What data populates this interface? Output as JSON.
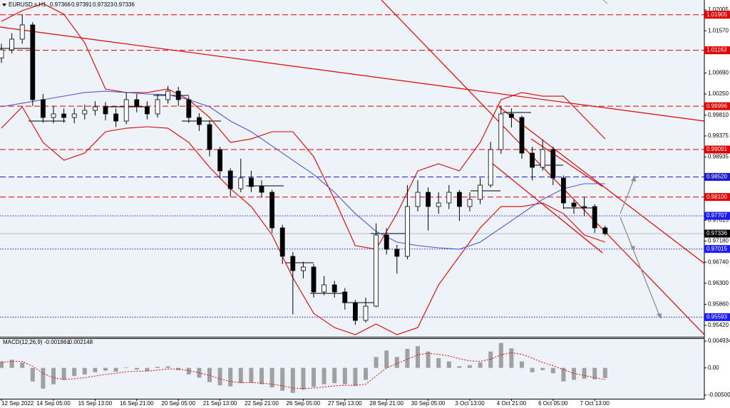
{
  "chart_data": {
    "type": "candlestick",
    "title": "EURUSD.s,H1",
    "quote": [
      0.97366,
      0.97391,
      0.97323,
      0.97336
    ],
    "categories": [
      "12 Sep 2022",
      null,
      null,
      null,
      null,
      "14 Sep 05:00",
      null,
      null,
      null,
      "15 Sep 13:00",
      null,
      null,
      null,
      "16 Sep 21:00",
      null,
      null,
      null,
      "20 Sep 05:00",
      null,
      null,
      null,
      "21 Sep 13:00",
      null,
      null,
      null,
      "22 Sep 21:00",
      null,
      null,
      null,
      "26 Sep 05:00",
      null,
      null,
      null,
      "27 Sep 13:00",
      null,
      null,
      null,
      "28 Sep 21:00",
      null,
      null,
      null,
      "30 Sep 05:00",
      null,
      null,
      null,
      "3 Oct 13:00",
      null,
      null,
      null,
      "4 Oct 21:00",
      null,
      null,
      null,
      "6 Oct 05:00",
      null,
      null,
      null,
      "7 Oct 13:00",
      null
    ],
    "open": [
      1.01,
      1.01173,
      1.01396,
      1.01693,
      1.00132,
      0.9976,
      0.99835,
      0.9976,
      0.99835,
      0.99909,
      0.99983,
      0.99835,
      0.99686,
      1.00132,
      0.99983,
      0.99835,
      1.00132,
      1.0031,
      1.00132,
      0.9976,
      0.99612,
      0.99091,
      0.98645,
      0.98274,
      0.98497,
      0.98318,
      0.98199,
      0.97456,
      0.96862,
      0.96564,
      0.96639,
      0.96118,
      0.96267,
      0.96118,
      0.95895,
      0.95524,
      0.95821,
      0.97308,
      0.9701,
      0.96862,
      0.97902,
      0.98199,
      0.97902,
      0.97976,
      0.98199,
      0.97902,
      0.98051,
      0.98348,
      0.99091,
      0.99835,
      0.9976,
      0.99017,
      0.9872,
      0.99091,
      0.98497,
      0.97976,
      0.97902,
      0.97902,
      0.97456
    ],
    "high": [
      1.013,
      1.0152,
      1.01905,
      1.0175,
      1.0025,
      1.0,
      0.9995,
      0.9995,
      1.0003,
      1.001,
      1.0008,
      0.9995,
      1.0029,
      1.0025,
      1.001,
      1.0025,
      1.0042,
      1.004,
      1.002,
      0.9985,
      0.997,
      0.9915,
      0.987,
      0.989,
      0.9865,
      0.9845,
      0.9825,
      0.9752,
      0.9695,
      0.9675,
      0.967,
      0.9645,
      0.9635,
      0.962,
      0.9595,
      0.96,
      0.9755,
      0.9745,
      0.971,
      0.9835,
      0.9845,
      0.983,
      0.982,
      0.9835,
      0.9825,
      0.982,
      0.985,
      0.9925,
      1.0,
      0.9995,
      0.998,
      0.9915,
      0.993,
      0.9915,
      0.9855,
      0.9805,
      0.981,
      0.9795,
      0.975
    ],
    "low": [
      1.009,
      1.011,
      1.013,
      1.0,
      0.9965,
      0.9964,
      0.9965,
      0.9964,
      0.9972,
      0.998,
      0.997,
      0.9956,
      0.9962,
      0.9987,
      0.9972,
      0.9976,
      1.0005,
      1.0,
      0.9965,
      0.9948,
      0.9895,
      0.985,
      0.981,
      0.982,
      0.982,
      0.981,
      0.9735,
      0.967,
      0.9565,
      0.964,
      0.96,
      0.9605,
      0.96,
      0.9575,
      0.9543,
      0.9548,
      0.958,
      0.969,
      0.965,
      0.968,
      0.978,
      0.974,
      0.9775,
      0.9785,
      0.976,
      0.978,
      0.9795,
      0.983,
      0.99,
      0.9955,
      0.989,
      0.9845,
      0.9865,
      0.9835,
      0.9785,
      0.9775,
      0.977,
      0.9735,
      0.973
    ],
    "close": [
      1.01173,
      1.01396,
      1.01693,
      1.00132,
      0.9976,
      0.99835,
      0.9976,
      0.99835,
      0.99909,
      0.99983,
      0.99835,
      0.99686,
      1.00132,
      0.99983,
      0.99835,
      1.00132,
      1.0031,
      1.00132,
      0.9976,
      0.99612,
      0.99091,
      0.98645,
      0.98274,
      0.98497,
      0.98318,
      0.98199,
      0.97456,
      0.96862,
      0.96564,
      0.96639,
      0.96118,
      0.96267,
      0.96118,
      0.95895,
      0.95524,
      0.95821,
      0.97308,
      0.9701,
      0.96862,
      0.97902,
      0.98199,
      0.97902,
      0.97976,
      0.98199,
      0.97902,
      0.98051,
      0.98348,
      0.99091,
      0.99835,
      0.9976,
      0.99017,
      0.9872,
      0.99091,
      0.98497,
      0.97976,
      0.97902,
      0.97902,
      0.97456,
      0.97336
    ],
    "ylim": [
      0.95182,
      1.02213
    ],
    "yticks": [
      1.02005,
      {
        "value": 1.0157,
        "label": "1.01570"
      },
      {
        "value": 1.0069,
        "label": "1.00690"
      },
      {
        "value": 1.0025,
        "label": "1.00250"
      },
      {
        "value": 0.9981,
        "label": "0.99810"
      },
      0.99375,
      0.98935,
      0.97615,
      {
        "value": 0.9718,
        "label": "0.97180"
      },
      {
        "value": 0.9674,
        "label": "0.96740"
      },
      {
        "value": 0.963,
        "label": "0.96300"
      },
      {
        "value": 0.9586,
        "label": "0.95860"
      },
      {
        "value": 0.9542,
        "label": "0.95420"
      }
    ],
    "grid": false,
    "up_color": "#ffffff",
    "down_color": "#000000",
    "overlays": [
      {
        "color": "#e00000",
        "x": [
          0,
          2,
          4,
          6,
          8,
          10,
          12,
          14,
          16,
          18,
          20,
          22,
          24,
          26,
          28,
          30,
          32,
          34,
          36,
          38,
          40,
          42,
          44,
          46,
          48,
          50,
          52,
          54,
          56,
          58
        ],
        "values": [
          1.01767,
          1.0199,
          1.02139,
          1.01916,
          1.01321,
          1.00355,
          1.00281,
          1.00281,
          1.00355,
          1.00132,
          0.9976,
          0.9924,
          0.99314,
          0.99463,
          0.99463,
          0.98943,
          0.98051,
          0.97085,
          0.9701,
          0.97753,
          0.98645,
          0.98794,
          0.98645,
          0.9924,
          1.00132,
          1.00281,
          1.00206,
          1.00206,
          0.9976,
          0.99314
        ]
      },
      {
        "color": "#e00000",
        "x": [
          0,
          2,
          4,
          6,
          8,
          10,
          12,
          14,
          16,
          18,
          20,
          22,
          24,
          26,
          28,
          30,
          32,
          34,
          36,
          38,
          40,
          42,
          44,
          46,
          48,
          50,
          52,
          54,
          56,
          58
        ],
        "values": [
          0.99537,
          0.99983,
          0.9924,
          0.98868,
          0.99017,
          0.99463,
          0.99537,
          0.99567,
          0.99537,
          0.9924,
          0.9872,
          0.98274,
          0.97902,
          0.97308,
          0.96416,
          0.95672,
          0.95375,
          0.95226,
          0.95449,
          0.95226,
          0.95375,
          0.96267,
          0.96862,
          0.97456,
          0.97902,
          0.97902,
          0.97976,
          0.97753,
          0.97308,
          0.97159
        ]
      },
      {
        "color": "#4a5ad8",
        "x": [
          0,
          2,
          4,
          6,
          8,
          10,
          12,
          14,
          16,
          18,
          20,
          22,
          24,
          26,
          28,
          30,
          32,
          34,
          36,
          38,
          40,
          42,
          44,
          46,
          48,
          50,
          52,
          54,
          56,
          58
        ],
        "values": [
          0.99983,
          1.00058,
          1.00132,
          1.00206,
          1.00281,
          1.0031,
          1.00281,
          1.00251,
          1.00236,
          1.00132,
          0.99983,
          0.99686,
          0.99463,
          0.99166,
          0.98868,
          0.98571,
          0.98199,
          0.97753,
          0.97382,
          0.97159,
          0.97085,
          0.9704,
          0.9701,
          0.97159,
          0.97456,
          0.97753,
          0.98051,
          0.98274,
          0.98378,
          0.98378
        ]
      }
    ],
    "levels": [
      {
        "value": 1.01905,
        "color": "#e00000",
        "style": "dash"
      },
      {
        "value": 1.01163,
        "color": "#e00000",
        "style": "dash"
      },
      {
        "value": 0.99996,
        "color": "#e00000",
        "style": "dash"
      },
      {
        "value": 0.99091,
        "color": "#e00000",
        "style": "dash"
      },
      {
        "value": 0.9852,
        "label": "0.98520",
        "color": "#1a1acc",
        "style": "dash"
      },
      {
        "value": 0.981,
        "label": "0.98100",
        "color": "#e00000",
        "style": "dash"
      },
      {
        "value": 0.97707,
        "color": "#1a1aff",
        "style": "dot"
      },
      {
        "value": 0.97015,
        "color": "#1a1aff",
        "style": "dot"
      },
      {
        "value": 0.95593,
        "color": "#1a1aff",
        "style": "dot"
      }
    ],
    "current_color": "#000000",
    "macd": {
      "title": "MACD(12,26,9)",
      "hist_color": "#a0a0a0",
      "signal_color": "#e00000",
      "histogram": [
        0.0012,
        0.0015,
        0.001,
        -0.0025,
        -0.0038,
        -0.003,
        -0.0022,
        -0.0015,
        -0.0012,
        -0.0008,
        -0.0005,
        -0.0007,
        0.0001,
        -0.0003,
        -0.0006,
        0.0002,
        0.0003,
        -0.0004,
        -0.0012,
        -0.0018,
        -0.0026,
        -0.0032,
        -0.0034,
        -0.0028,
        -0.0027,
        -0.003,
        -0.0036,
        -0.0042,
        -0.0046,
        -0.004,
        -0.0035,
        -0.003,
        -0.0028,
        -0.003,
        -0.0033,
        -0.0022,
        0.002,
        0.0032,
        0.002,
        0.0035,
        0.004,
        0.003,
        0.0018,
        0.0012,
        0.0003,
        0.0005,
        0.001,
        0.003,
        0.0046,
        0.0036,
        0.0012,
        -0.0008,
        -0.0004,
        -0.001,
        -0.0025,
        -0.0022,
        -0.002,
        -0.0021,
        -0.001861
      ],
      "signal": [
        0.001,
        0.0012,
        0.0012,
        0.0003,
        -0.001,
        -0.0018,
        -0.0021,
        -0.002,
        -0.0018,
        -0.0015,
        -0.0012,
        -0.001,
        -0.0007,
        -0.0006,
        -0.0006,
        -0.0004,
        -0.0002,
        -0.0002,
        -0.0005,
        -0.0009,
        -0.0014,
        -0.002,
        -0.0025,
        -0.0027,
        -0.0027,
        -0.0028,
        -0.003,
        -0.0033,
        -0.0037,
        -0.0038,
        -0.0037,
        -0.0035,
        -0.0033,
        -0.0032,
        -0.0032,
        -0.003,
        -0.0015,
        0,
        0.0008,
        0.0016,
        0.0024,
        0.0027,
        0.0025,
        0.0022,
        0.0017,
        0.0013,
        0.0012,
        0.0016,
        0.0024,
        0.0028,
        0.0025,
        0.0018,
        0.001,
        0.0004,
        -0.0003,
        -0.001,
        -0.0014,
        -0.0018,
        -0.002148
      ],
      "ylim": [
        -0.00567,
        0.00546
      ],
      "yticks": [
        0.004934,
        {
          "value": 0,
          "label": "0.00"
        },
        -0.005003
      ]
    }
  }
}
